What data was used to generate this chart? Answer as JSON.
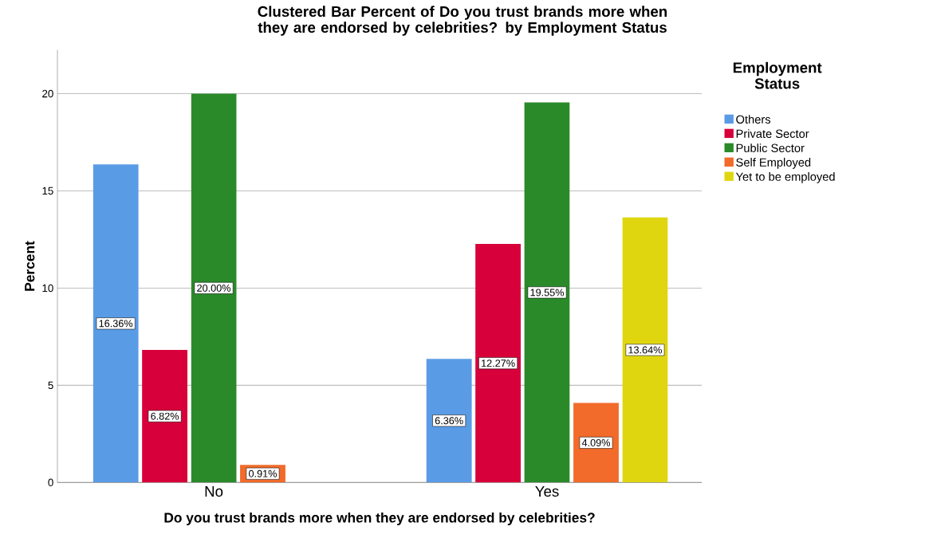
{
  "chart_data": {
    "type": "bar",
    "title": "Clustered Bar Percent of Do you trust brands more when they are endorsed by celebrities? by Employment Status",
    "xlabel": "Do you trust brands more when they are endorsed by celebrities?",
    "ylabel": "Percent",
    "legend_title": "Employment Status",
    "categories": [
      "No",
      "Yes"
    ],
    "series": [
      {
        "name": "Others",
        "color": "#5a9be6",
        "values": [
          16.36,
          6.36
        ],
        "value_labels": [
          "16.36%",
          "6.36%"
        ]
      },
      {
        "name": "Private Sector",
        "color": "#d7003a",
        "values": [
          6.82,
          12.27
        ],
        "value_labels": [
          "6.82%",
          "12.27%"
        ]
      },
      {
        "name": "Public Sector",
        "color": "#2a8a2a",
        "values": [
          20.0,
          19.55
        ],
        "value_labels": [
          "20.00%",
          "19.55%"
        ]
      },
      {
        "name": "Self Employed",
        "color": "#f26b2a",
        "values": [
          0.91,
          4.09
        ],
        "value_labels": [
          "0.91%",
          "4.09%"
        ]
      },
      {
        "name": "Yet to be employed",
        "color": "#e0d610",
        "values": [
          null,
          13.64
        ],
        "value_labels": [
          null,
          "13.64%"
        ]
      }
    ],
    "ylim": [
      0,
      22.25
    ],
    "yticks": [
      0,
      5,
      10,
      15,
      20
    ],
    "grid": "y",
    "legend": "top right"
  }
}
